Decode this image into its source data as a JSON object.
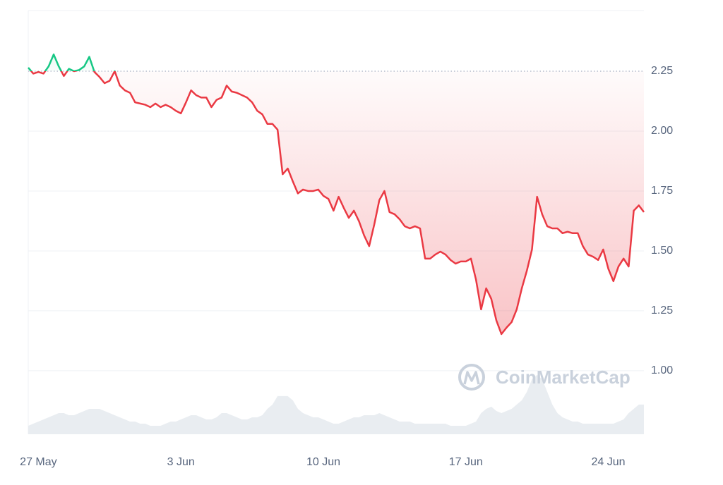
{
  "chart_data": {
    "type": "line",
    "watermark": "CoinMarketCap",
    "baseline": 2.25,
    "up_color": "#16c784",
    "categories": [
      null,
      null,
      "27 May",
      null,
      null,
      null,
      null,
      null,
      null,
      null,
      null,
      null,
      null,
      null,
      null,
      null,
      null,
      null,
      null,
      null,
      null,
      null,
      null,
      null,
      null,
      null,
      null,
      null,
      null,
      null,
      "3 Jun",
      null,
      null,
      null,
      null,
      null,
      null,
      null,
      null,
      null,
      null,
      null,
      null,
      null,
      null,
      null,
      null,
      null,
      null,
      null,
      null,
      null,
      null,
      null,
      null,
      null,
      null,
      null,
      "10 Jun",
      null,
      null,
      null,
      null,
      null,
      null,
      null,
      null,
      null,
      null,
      null,
      null,
      null,
      null,
      null,
      null,
      null,
      null,
      null,
      null,
      null,
      null,
      null,
      null,
      null,
      null,
      null,
      "17 Jun",
      null,
      null,
      null,
      null,
      null,
      null,
      null,
      null,
      null,
      null,
      null,
      null,
      null,
      null,
      null,
      null,
      null,
      null,
      null,
      null,
      null,
      null,
      null,
      null,
      null,
      null,
      null,
      "24 Jun",
      null,
      null,
      null,
      null,
      null,
      null,
      null
    ],
    "series": [
      {
        "color": "#ea3943",
        "values": [
          2.265,
          2.24,
          2.247,
          2.24,
          2.27,
          2.32,
          2.27,
          2.23,
          2.26,
          2.25,
          2.255,
          2.27,
          2.31,
          2.247,
          2.226,
          2.2,
          2.21,
          2.25,
          2.19,
          2.17,
          2.16,
          2.12,
          2.115,
          2.11,
          2.1,
          2.115,
          2.1,
          2.11,
          2.1,
          2.085,
          2.074,
          2.12,
          2.17,
          2.15,
          2.14,
          2.14,
          2.1,
          2.13,
          2.14,
          2.19,
          2.165,
          2.16,
          2.15,
          2.14,
          2.12,
          2.085,
          2.07,
          2.03,
          2.03,
          2.006,
          1.82,
          1.844,
          1.79,
          1.74,
          1.756,
          1.75,
          1.75,
          1.756,
          1.73,
          1.717,
          1.668,
          1.726,
          1.68,
          1.638,
          1.668,
          1.624,
          1.565,
          1.52,
          1.61,
          1.712,
          1.75,
          1.662,
          1.653,
          1.632,
          1.603,
          1.594,
          1.603,
          1.594,
          1.468,
          1.468,
          1.485,
          1.497,
          1.485,
          1.462,
          1.447,
          1.456,
          1.456,
          1.468,
          1.38,
          1.256,
          1.344,
          1.3,
          1.21,
          1.153,
          1.18,
          1.203,
          1.256,
          1.344,
          1.418,
          1.506,
          1.726,
          1.653,
          1.603,
          1.594,
          1.594,
          1.574,
          1.58,
          1.574,
          1.574,
          1.52,
          1.485,
          1.476,
          1.462,
          1.506,
          1.426,
          1.374,
          1.435,
          1.468,
          1.435,
          1.668,
          1.69,
          1.662
        ]
      },
      {
        "axis": "y2",
        "color": "#e9edf1",
        "values": [
          2,
          2.5,
          3,
          3.5,
          4,
          4.5,
          5,
          5,
          4.5,
          4.5,
          5,
          5.5,
          6,
          6,
          6,
          5.5,
          5,
          4.5,
          4,
          3.5,
          3,
          3,
          2.5,
          2.5,
          2,
          2,
          2,
          2.5,
          3,
          3,
          3.5,
          4,
          4.5,
          4.5,
          4,
          3.5,
          3.5,
          4,
          5,
          5,
          4.5,
          4,
          3.5,
          3.5,
          4,
          4,
          4.5,
          6,
          7,
          9,
          9,
          9,
          8,
          6,
          5,
          4.5,
          4,
          4,
          3.5,
          3,
          2.5,
          2.5,
          3,
          3.5,
          4,
          4,
          4.5,
          4.5,
          4.5,
          5,
          4.5,
          4,
          3.5,
          3,
          3,
          3,
          2.5,
          2.5,
          2.5,
          2.5,
          2.5,
          2.5,
          2.5,
          2,
          2,
          2,
          2,
          2.5,
          3,
          5,
          6,
          6.5,
          5.5,
          5,
          5.5,
          6,
          7,
          8,
          10,
          13,
          14,
          13,
          10,
          7,
          5,
          4,
          3.5,
          3,
          3,
          2.5,
          2.5,
          2.5,
          2.5,
          2.5,
          2.5,
          2.5,
          3,
          3.5,
          5,
          6,
          7,
          7
        ]
      }
    ],
    "ylim": [
      0.735,
      2.503
    ],
    "y2lim": [
      0,
      100
    ],
    "yticks": [
      {
        "value": 1,
        "label": "1.00"
      },
      {
        "value": 1.25,
        "label": "1.25"
      },
      {
        "value": 1.5,
        "label": "1.50"
      },
      {
        "value": 1.75,
        "label": "1.75"
      },
      {
        "value": 2,
        "label": "2.00"
      },
      {
        "value": 2.25,
        "label": "2.25"
      }
    ],
    "grid": true
  }
}
